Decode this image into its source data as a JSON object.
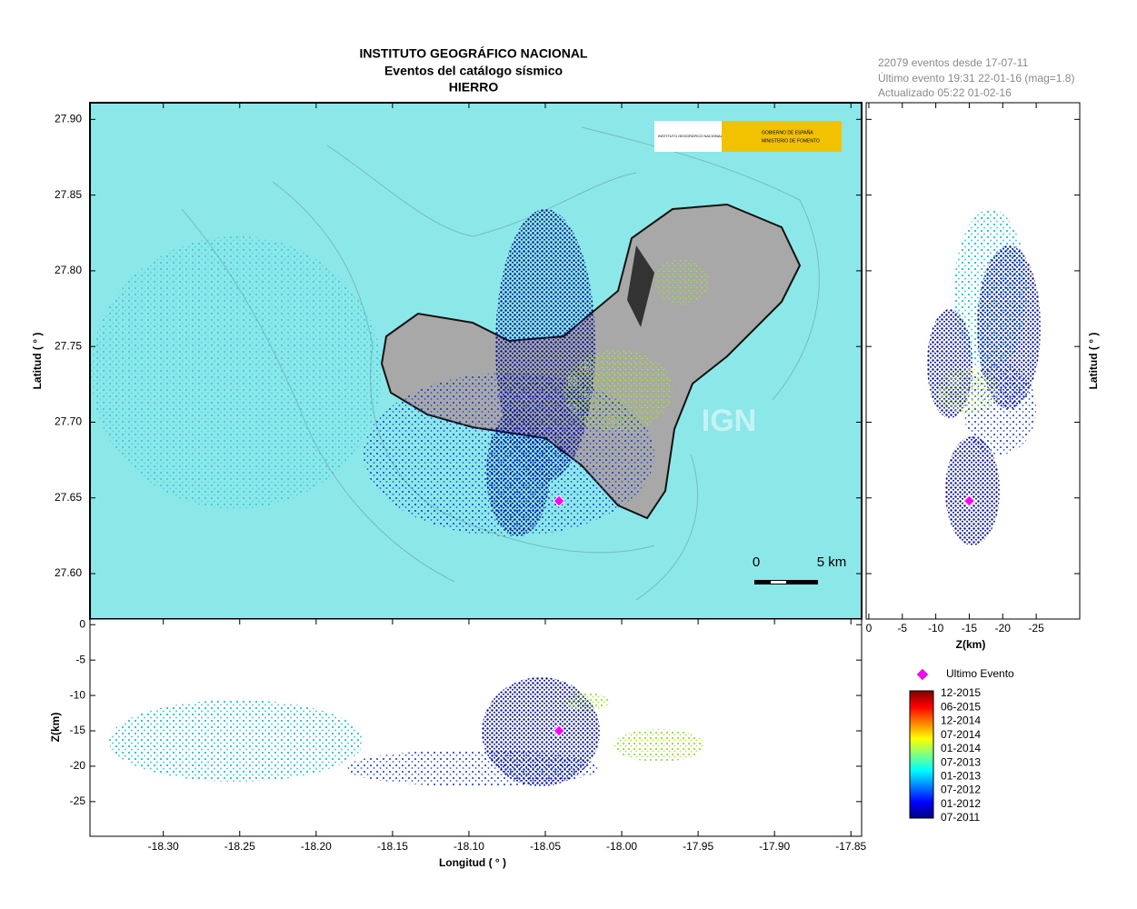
{
  "title": [
    "INSTITUTO GEOGRÁFICO NACIONAL",
    "Eventos del catálogo sísmico",
    "HIERRO"
  ],
  "info": [
    "22079 eventos desde 17-07-11",
    "Último evento 19:31 22-01-16  (mag=1.8)",
    "Actualizado  05:22  01-02-16"
  ],
  "map": {
    "xlim": [
      -18.348,
      -17.843
    ],
    "ylim": [
      27.57,
      27.911
    ],
    "yticks": [
      {
        "value": 27.6,
        "label": "27.60"
      },
      27.65,
      {
        "value": 27.7,
        "label": "27.70"
      },
      27.75,
      {
        "value": 27.8,
        "label": "27.80"
      },
      27.85,
      {
        "value": 27.9,
        "label": "27.90"
      }
    ],
    "ylabel": "Latitud ( ° )",
    "watermark": "IGN",
    "scale_bar": [
      "0",
      "5 km"
    ],
    "logos": [
      "INSTITUTO GEOGRÁFICO NACIONAL",
      "GOBIERNO DE ESPAÑA",
      "MINISTERIO DE FOMENTO"
    ]
  },
  "depth": {
    "ylim": [
      -29.9,
      0.8
    ],
    "yticks": [
      0,
      -5,
      -10,
      -15,
      -20,
      -25
    ],
    "ylabel": "Z(km)",
    "xticks": [
      {
        "value": -18.3,
        "label": "-18.30"
      },
      -18.25,
      {
        "value": -18.2,
        "label": "-18.20"
      },
      -18.15,
      {
        "value": -18.1,
        "label": "-18.10"
      },
      -18.05,
      {
        "value": -18,
        "label": "-18.00"
      },
      -17.95,
      {
        "value": -17.9,
        "label": "-17.90"
      },
      -17.85
    ],
    "xlabel": "Longitud ( ° )"
  },
  "section": {
    "xlim": [
      0.4,
      -31.5
    ],
    "xticks": [
      0,
      -5,
      -10,
      -15,
      -20,
      -25
    ],
    "xlabel": "Z(km)",
    "ylabel": "Latitud ( ° )"
  },
  "last_event": {
    "label": "Ultimo Evento",
    "lon": -18.041,
    "lat": 27.648,
    "z": -15,
    "color": "#ff00ff"
  },
  "colorbar": {
    "labels": [
      "12-2015",
      "06-2015",
      "12-2014",
      "07-2014",
      "01-2014",
      "07-2013",
      "01-2013",
      "07-2012",
      "01-2012",
      "07-2011"
    ],
    "colors": [
      "#800000",
      "#ff0000",
      "#ff8000",
      "#ffff00",
      "#80ff80",
      "#00ffff",
      "#0080ff",
      "#0000ff",
      "#000080"
    ]
  }
}
